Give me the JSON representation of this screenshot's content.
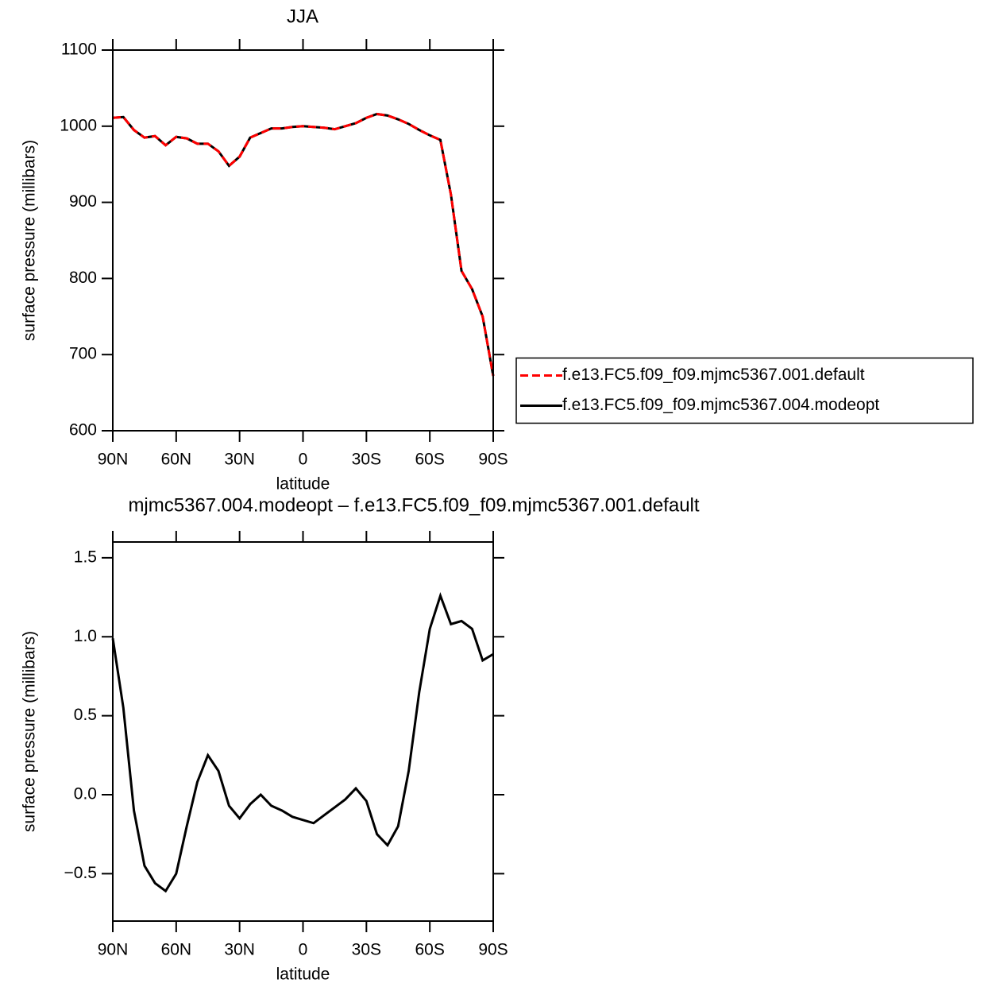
{
  "chart_data": [
    {
      "type": "line",
      "title": "JJA",
      "ylabel": "surface pressure (millibars)",
      "xlabel": "latitude",
      "x": [
        90,
        85,
        80,
        75,
        70,
        65,
        60,
        55,
        50,
        45,
        40,
        35,
        30,
        25,
        20,
        15,
        10,
        5,
        0,
        -5,
        -10,
        -15,
        -20,
        -25,
        -30,
        -35,
        -40,
        -45,
        -50,
        -55,
        -60,
        -65,
        -70,
        -75,
        -80,
        -85,
        -90
      ],
      "xlim": [
        90,
        -90
      ],
      "xticks": [
        {
          "value": 90,
          "label": "90N"
        },
        {
          "value": 60,
          "label": "60N"
        },
        {
          "value": 30,
          "label": "30N"
        },
        0,
        {
          "value": -30,
          "label": "30S"
        },
        {
          "value": -60,
          "label": "60S"
        },
        {
          "value": -90,
          "label": "90S"
        }
      ],
      "ylim": [
        600,
        1100
      ],
      "yticks": [
        600,
        700,
        800,
        900,
        1000,
        1100
      ],
      "legend": "right",
      "series": [
        {
          "name": "f.e13.FC5.f09_f09.mjmc5367.001.default",
          "color": "#ff0000",
          "dash": true,
          "values": [
            1011,
            1012,
            995,
            985,
            987,
            975,
            986,
            984,
            977,
            977,
            967,
            948,
            960,
            985,
            991,
            997,
            997,
            999,
            1000,
            999,
            998,
            996,
            1000,
            1004,
            1011,
            1016,
            1014,
            1009,
            1003,
            995,
            988,
            982,
            910,
            810,
            786,
            750,
            672
          ]
        },
        {
          "name": "f.e13.FC5.f09_f09.mjmc5367.004.modeopt",
          "color": "#000000",
          "dash": false,
          "values": [
            1011,
            1012,
            995,
            985,
            987,
            975,
            986,
            984,
            977,
            977,
            967,
            948,
            960,
            985,
            991,
            997,
            997,
            999,
            1000,
            999,
            998,
            996,
            1000,
            1004,
            1011,
            1016,
            1014,
            1009,
            1003,
            995,
            988,
            982,
            910,
            810,
            786,
            750,
            672
          ]
        }
      ]
    },
    {
      "type": "line",
      "title": "mjmc5367.004.modeopt – f.e13.FC5.f09_f09.mjmc5367.001.default",
      "ylabel": "surface pressure (millibars)",
      "xlabel": "latitude",
      "x": [
        90,
        85,
        80,
        75,
        70,
        65,
        60,
        55,
        50,
        45,
        40,
        35,
        30,
        25,
        20,
        15,
        10,
        5,
        0,
        -5,
        -10,
        -15,
        -20,
        -25,
        -30,
        -35,
        -40,
        -45,
        -50,
        -55,
        -60,
        -65,
        -70,
        -75,
        -80,
        -85,
        -90
      ],
      "xlim": [
        90,
        -90
      ],
      "xticks": [
        {
          "value": 90,
          "label": "90N"
        },
        {
          "value": 60,
          "label": "60N"
        },
        {
          "value": 30,
          "label": "30N"
        },
        0,
        {
          "value": -30,
          "label": "30S"
        },
        {
          "value": -60,
          "label": "60S"
        },
        {
          "value": -90,
          "label": "90S"
        }
      ],
      "ylim": [
        -0.8,
        1.6
      ],
      "yticks": [
        {
          "value": -0.5,
          "label": "−0.5"
        },
        {
          "value": 0,
          "label": "0.0"
        },
        0.5,
        {
          "value": 1,
          "label": "1.0"
        },
        1.5
      ],
      "series": [
        {
          "color": "#000000",
          "dash": false,
          "values": [
            0.99,
            0.55,
            -0.1,
            -0.45,
            -0.56,
            -0.61,
            -0.5,
            -0.2,
            0.08,
            0.25,
            0.15,
            -0.07,
            -0.15,
            -0.06,
            0.0,
            -0.07,
            -0.1,
            -0.14,
            -0.16,
            -0.18,
            -0.13,
            -0.08,
            -0.03,
            0.04,
            -0.04,
            -0.25,
            -0.32,
            -0.2,
            0.15,
            0.65,
            1.05,
            1.26,
            1.08,
            1.1,
            1.05,
            0.85,
            0.89
          ]
        }
      ]
    }
  ]
}
